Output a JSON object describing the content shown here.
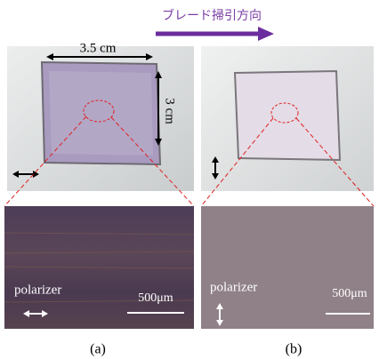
{
  "header": {
    "title": "ブレード掃引方向"
  },
  "panels": [
    {
      "label": "(a)",
      "width_label": "3.5 cm",
      "height_label": "3 cm",
      "polarizer": "polarizer",
      "scale_bar": "500μm"
    },
    {
      "label": "(b)",
      "polarizer": "polarizer",
      "scale_bar": "500μm"
    }
  ]
}
